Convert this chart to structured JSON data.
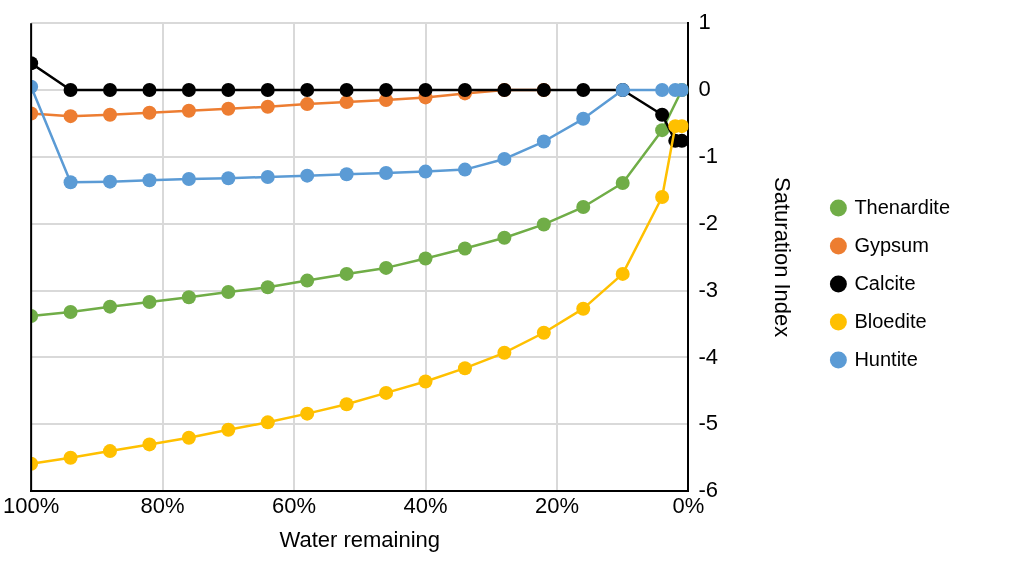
{
  "chart_data": {
    "type": "line",
    "xlabel": "Water remaining",
    "ylabel": "Saturation Index",
    "x": [
      100,
      94,
      88,
      82,
      76,
      70,
      64,
      58,
      52,
      46,
      40,
      34,
      28,
      22,
      16,
      10,
      4,
      2,
      1
    ],
    "series": [
      {
        "name": "Thenardite",
        "color": "#70ad47",
        "values": [
          -3.38,
          -3.32,
          -3.24,
          -3.17,
          -3.1,
          -3.02,
          -2.95,
          -2.85,
          -2.75,
          -2.66,
          -2.52,
          -2.37,
          -2.21,
          -2.01,
          -1.75,
          -1.39,
          -0.6,
          null,
          0
        ]
      },
      {
        "name": "Gypsum",
        "color": "#ed7d31",
        "values": [
          -0.35,
          -0.39,
          -0.37,
          -0.34,
          -0.31,
          -0.28,
          -0.25,
          -0.21,
          -0.18,
          -0.15,
          -0.11,
          -0.05,
          0,
          0,
          null,
          null,
          null,
          null,
          null
        ]
      },
      {
        "name": "Calcite",
        "color": "#000000",
        "values": [
          0.4,
          0,
          0,
          0,
          0,
          0,
          0,
          0,
          0,
          0,
          0,
          0,
          0,
          0,
          0,
          0,
          -0.37,
          -0.76,
          -0.76
        ]
      },
      {
        "name": "Bloedite",
        "color": "#ffc000",
        "values": [
          -5.59,
          -5.5,
          -5.4,
          -5.3,
          -5.2,
          -5.08,
          -4.97,
          -4.84,
          -4.7,
          -4.53,
          -4.36,
          -4.16,
          -3.93,
          -3.63,
          -3.27,
          -2.75,
          -1.6,
          -0.54,
          -0.54
        ]
      },
      {
        "name": "Huntite",
        "color": "#5b9bd5",
        "values": [
          0.05,
          -1.38,
          -1.37,
          -1.35,
          -1.33,
          -1.32,
          -1.3,
          -1.28,
          -1.26,
          -1.24,
          -1.22,
          -1.19,
          -1.03,
          -0.77,
          -0.43,
          0,
          0,
          0,
          0
        ]
      }
    ],
    "xlim": [
      100,
      0
    ],
    "xticks": [
      {
        "value": 100,
        "label": "100%"
      },
      {
        "value": 80,
        "label": "80%"
      },
      {
        "value": 60,
        "label": "60%"
      },
      {
        "value": 40,
        "label": "40%"
      },
      {
        "value": 20,
        "label": "20%"
      },
      {
        "value": 0,
        "label": "0%"
      }
    ],
    "ylim": [
      -6,
      1
    ],
    "yticks": [
      -6,
      -5,
      -4,
      -3,
      -2,
      -1,
      0,
      1
    ],
    "grid": true,
    "legend": "right",
    "marker": "circle",
    "line_style": "solid"
  }
}
